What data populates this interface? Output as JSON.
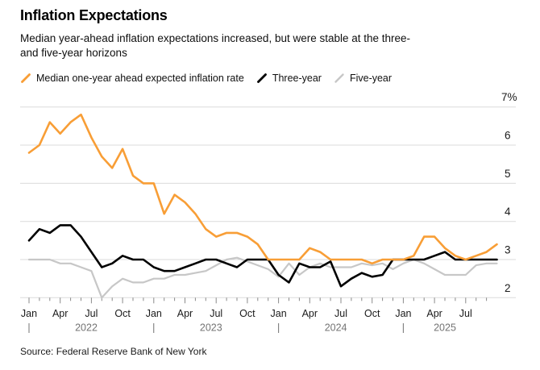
{
  "header": {
    "title": "Inflation Expectations",
    "subtitle_line1": "Median year-ahead inflation expectations increased, but were stable at the three-",
    "subtitle_line2": "and five-year horizons"
  },
  "legend": [
    {
      "label": "Median one-year ahead expected inflation rate",
      "color": "#F89E36"
    },
    {
      "label": "Three-year",
      "color": "#000000"
    },
    {
      "label": "Five-year",
      "color": "#C7C7C7"
    }
  ],
  "source": "Source: Federal Reserve Bank of New York",
  "colors": {
    "accent_orange": "#F89E36",
    "line_black": "#000000",
    "line_gray": "#C7C7C7",
    "gridline": "#DBDBDB",
    "tick": "#8A8A8A",
    "year_text": "#737373",
    "axis_text": "#1A1A1A"
  },
  "chart_data": {
    "type": "line",
    "title": "Inflation Expectations",
    "ylabel": "",
    "xlabel": "",
    "ylim": [
      2,
      7
    ],
    "yticks": [
      2,
      3,
      4,
      5,
      6,
      7
    ],
    "ytick_top_label": "7%",
    "grid": "horizontal",
    "legend_position": "top",
    "x_year_labels": [
      "2022",
      "2023",
      "2024",
      "2025"
    ],
    "x_month_label_every": 3,
    "x": [
      "Jan 2022",
      "Feb 2022",
      "Mar 2022",
      "Apr 2022",
      "May 2022",
      "Jun 2022",
      "Jul 2022",
      "Aug 2022",
      "Sep 2022",
      "Oct 2022",
      "Nov 2022",
      "Dec 2022",
      "Jan 2023",
      "Feb 2023",
      "Mar 2023",
      "Apr 2023",
      "May 2023",
      "Jun 2023",
      "Jul 2023",
      "Aug 2023",
      "Sep 2023",
      "Oct 2023",
      "Nov 2023",
      "Dec 2023",
      "Jan 2024",
      "Feb 2024",
      "Mar 2024",
      "Apr 2024",
      "May 2024",
      "Jun 2024",
      "Jul 2024",
      "Aug 2024",
      "Sep 2024",
      "Oct 2024",
      "Nov 2024",
      "Dec 2024",
      "Jan 2025",
      "Feb 2025",
      "Mar 2025",
      "Apr 2025",
      "May 2025",
      "Jun 2025",
      "Jul 2025",
      "Aug 2025",
      "Sep 2025",
      "Oct 2025"
    ],
    "series": [
      {
        "name": "Five-year",
        "color": "#C7C7C7",
        "stroke_width": 2.2,
        "values": [
          3.0,
          3.0,
          3.0,
          2.9,
          2.9,
          2.8,
          2.7,
          2.0,
          2.3,
          2.5,
          2.4,
          2.4,
          2.5,
          2.5,
          2.6,
          2.6,
          2.65,
          2.7,
          2.85,
          3.0,
          3.05,
          2.95,
          2.85,
          2.75,
          2.55,
          2.9,
          2.6,
          2.8,
          2.9,
          2.8,
          2.8,
          2.8,
          2.9,
          2.85,
          2.9,
          2.75,
          2.9,
          3.0,
          2.9,
          2.75,
          2.6,
          2.6,
          2.6,
          2.85,
          2.9,
          2.9
        ]
      },
      {
        "name": "Three-year",
        "color": "#000000",
        "stroke_width": 2.6,
        "values": [
          3.5,
          3.8,
          3.7,
          3.9,
          3.9,
          3.6,
          3.2,
          2.8,
          2.9,
          3.1,
          3.0,
          3.0,
          2.8,
          2.7,
          2.7,
          2.8,
          2.9,
          3.0,
          3.0,
          2.9,
          2.8,
          3.0,
          3.0,
          3.0,
          2.6,
          2.4,
          2.9,
          2.8,
          2.8,
          2.95,
          2.3,
          2.5,
          2.65,
          2.55,
          2.6,
          3.0,
          3.0,
          3.0,
          3.0,
          3.1,
          3.2,
          3.0,
          3.0,
          3.0,
          3.0,
          3.0
        ]
      },
      {
        "name": "Median one-year ahead expected inflation rate",
        "color": "#F89E36",
        "stroke_width": 2.6,
        "values": [
          5.8,
          6.0,
          6.6,
          6.3,
          6.6,
          6.8,
          6.2,
          5.7,
          5.4,
          5.9,
          5.2,
          5.0,
          5.0,
          4.2,
          4.7,
          4.5,
          4.2,
          3.8,
          3.6,
          3.7,
          3.7,
          3.6,
          3.4,
          3.0,
          3.0,
          3.0,
          3.0,
          3.3,
          3.2,
          3.0,
          3.0,
          3.0,
          3.0,
          2.9,
          3.0,
          3.0,
          3.0,
          3.1,
          3.6,
          3.6,
          3.3,
          3.1,
          3.0,
          3.1,
          3.2,
          3.4
        ]
      }
    ]
  }
}
